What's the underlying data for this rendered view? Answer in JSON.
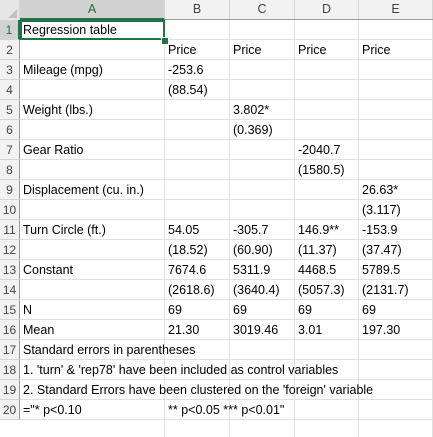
{
  "columns": [
    "A",
    "B",
    "C",
    "D",
    "E"
  ],
  "rows": [
    "1",
    "2",
    "3",
    "4",
    "5",
    "6",
    "7",
    "8",
    "9",
    "10",
    "11",
    "12",
    "13",
    "14",
    "15",
    "16",
    "17",
    "18",
    "19",
    "20"
  ],
  "cells": {
    "A1": "Regression table",
    "B2": "Price",
    "C2": "Price",
    "D2": "Price",
    "E2": "Price",
    "A3": "Mileage (mpg)",
    "B3": "-253.6",
    "B4": "(88.54)",
    "A5": "Weight (lbs.)",
    "C5": "3.802*",
    "C6": "(0.369)",
    "A7": "Gear Ratio",
    "D7": "-2040.7",
    "D8": "(1580.5)",
    "A9": "Displacement (cu. in.)",
    "E9": "26.63*",
    "E10": "(3.117)",
    "A11": "Turn Circle (ft.)",
    "B11": "54.05",
    "C11": "-305.7",
    "D11": "146.9**",
    "E11": "-153.9",
    "B12": "(18.52)",
    "C12": "(60.90)",
    "D12": "(11.37)",
    "E12": "(37.47)",
    "A13": "Constant",
    "B13": "7674.6",
    "C13": "5311.9",
    "D13": "4468.5",
    "E13": "5789.5",
    "B14": "(2618.6)",
    "C14": "(3640.4)",
    "D14": "(5057.3)",
    "E14": "(2131.7)",
    "A15": "N",
    "B15": "69",
    "C15": "69",
    "D15": "69",
    "E15": "69",
    "A16": "Mean",
    "B16": "21.30",
    "C16": "3019.46",
    "D16": "3.01",
    "E16": "197.30",
    "A17": "Standard errors in parentheses",
    "A18": "1. 'turn' & 'rep78' have been included as control variables",
    "A19": "2. Standard Errors have been clustered on the 'foreign' variable",
    "A20": "=\"* p<0.10",
    "B20": "** p<0.05  *** p<0.01\""
  },
  "selected_cell": "A1"
}
